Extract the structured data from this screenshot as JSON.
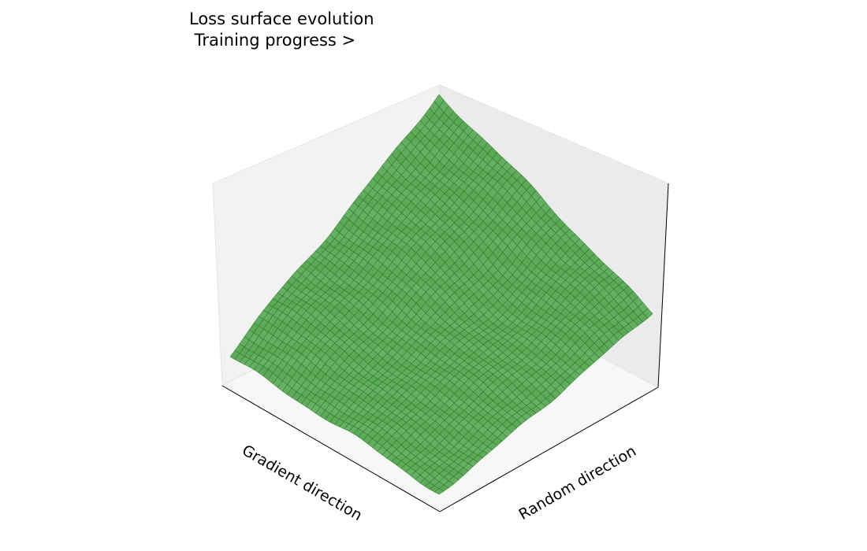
{
  "chart_data": {
    "type": "surface3d",
    "title": "Loss surface evolution",
    "subtitle": " Training progress >",
    "xlabel": "Gradient direction",
    "ylabel": "Random direction",
    "zlabel": "",
    "grid": false,
    "surface_color": "#4ea24a",
    "edge_color": "#1f7a1f",
    "pane_colors": [
      "#f2f2f2",
      "#ebebeb",
      "#f7f7f7"
    ],
    "surface_shape": "monotonic rise toward the far corner, lowest at the near corner, with a shallow ridge toward the right corner and small noisy ripples"
  }
}
